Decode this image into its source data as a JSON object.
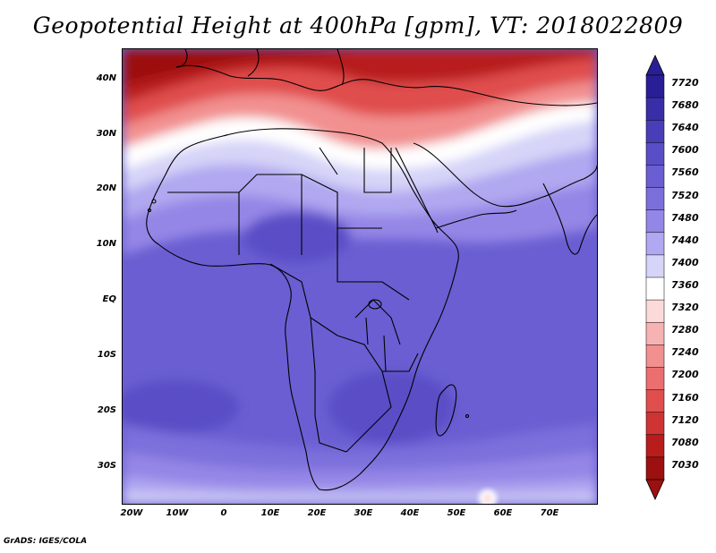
{
  "title": "Geopotential Height at 400hPa [gpm], VT: 2018022809",
  "footer": "GrADS: IGES/COLA",
  "y_axis_labels": [
    "40N",
    "30N",
    "20N",
    "10N",
    "EQ",
    "10S",
    "20S",
    "30S"
  ],
  "x_axis_labels": [
    "20W",
    "10W",
    "0",
    "10E",
    "20E",
    "30E",
    "40E",
    "50E",
    "60E",
    "70E"
  ],
  "colorbar": {
    "labels": [
      "7720",
      "7680",
      "7640",
      "7600",
      "7560",
      "7520",
      "7480",
      "7440",
      "7400",
      "7360",
      "7320",
      "7280",
      "7240",
      "7200",
      "7160",
      "7120",
      "7080",
      "7030"
    ],
    "colors": [
      "#2a1e96",
      "#3a2ea8",
      "#4a3eb8",
      "#5a4ec6",
      "#6a5ed2",
      "#7c6fdc",
      "#9486e6",
      "#b0a8f0",
      "#d6d4f8",
      "#ffffff",
      "#fcdada",
      "#f7b3b3",
      "#f29090",
      "#eb6f6f",
      "#e04e4e",
      "#cf3333",
      "#b81c1c",
      "#9c1010"
    ]
  },
  "map": {
    "variable": "Geopotential Height",
    "level": "400hPa",
    "units": "gpm",
    "valid_time": "2018022809"
  }
}
